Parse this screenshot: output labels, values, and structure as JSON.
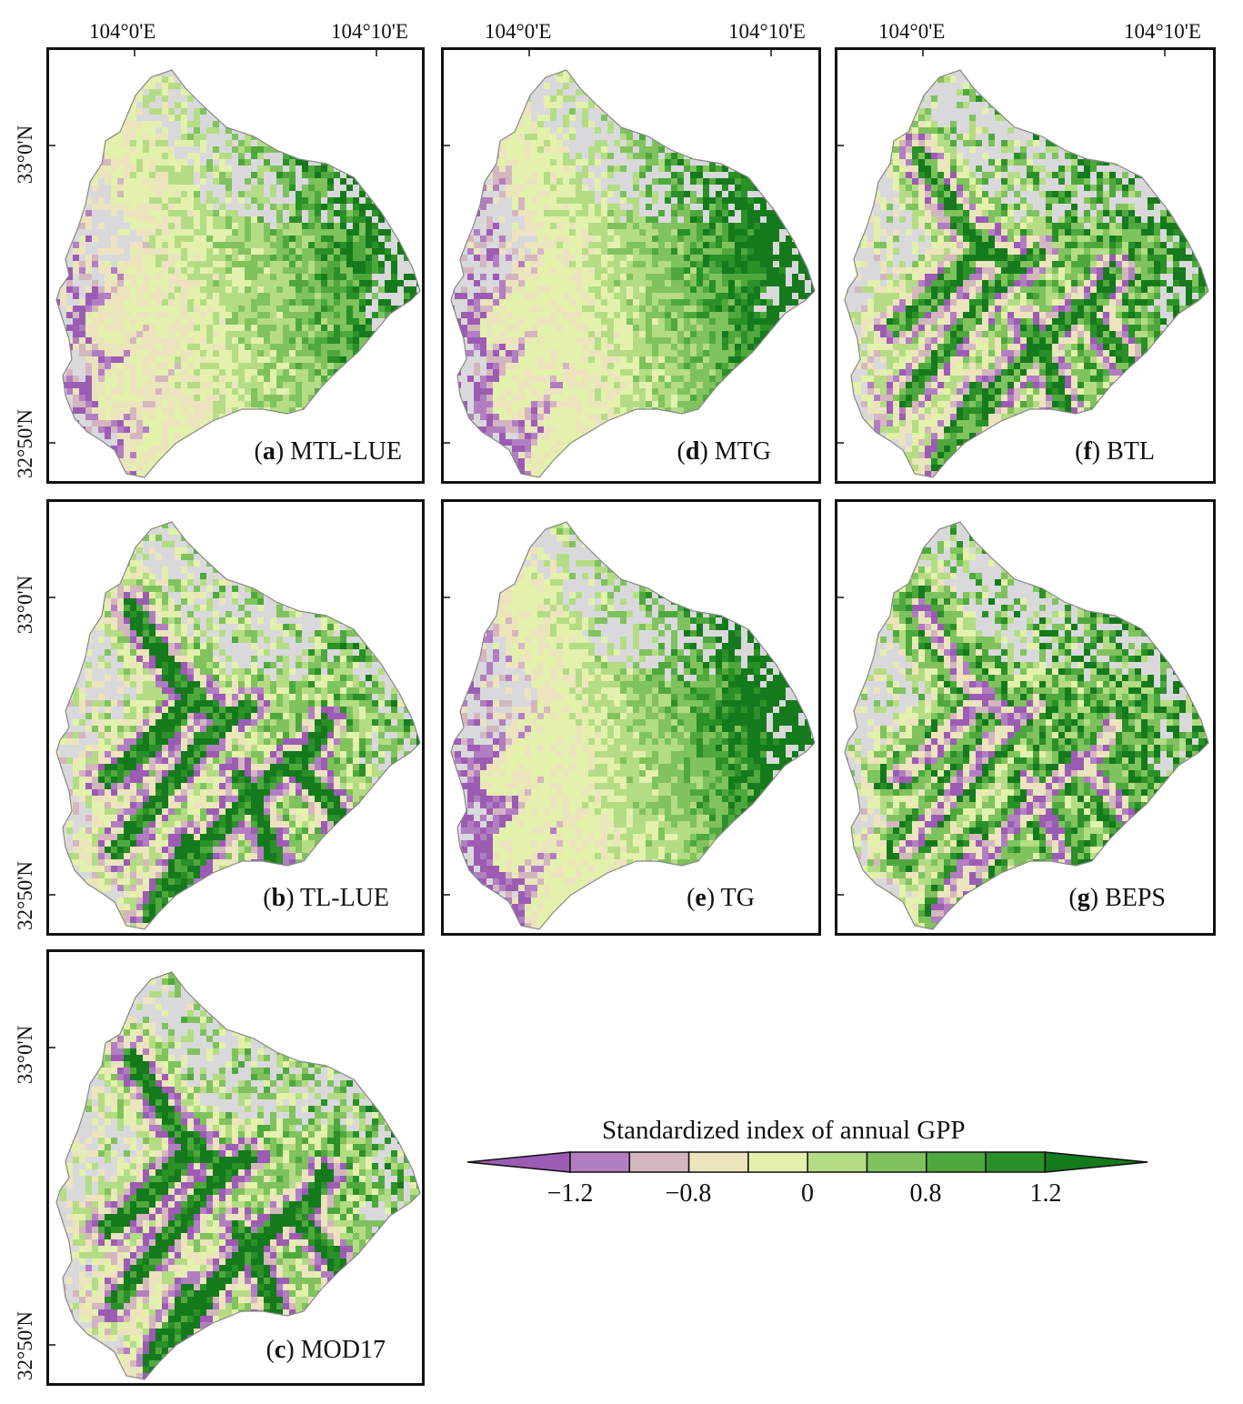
{
  "figure": {
    "lon_labels": [
      "104°0'E",
      "104°10'E"
    ],
    "lat_labels": [
      "33°0'N",
      "32°50'N"
    ]
  },
  "panels": [
    {
      "id": "a",
      "letter": "a",
      "name": "MTL-LUE",
      "style": "strong_east"
    },
    {
      "id": "b",
      "letter": "b",
      "name": "TL-LUE",
      "style": "light_ridges"
    },
    {
      "id": "c",
      "letter": "c",
      "name": "MOD17",
      "style": "light_ridges"
    },
    {
      "id": "d",
      "letter": "d",
      "name": "MTG",
      "style": "dark_east"
    },
    {
      "id": "e",
      "letter": "e",
      "name": "TG",
      "style": "dark_east"
    },
    {
      "id": "f",
      "letter": "f",
      "name": "BTL",
      "style": "ridges"
    },
    {
      "id": "g",
      "letter": "g",
      "name": "BEPS",
      "style": "mixed"
    }
  ],
  "colorbar": {
    "title": "Standardized index of annual GPP",
    "tick_labels": [
      "−1.2",
      "−0.8",
      "0",
      "0.8",
      "1.2"
    ],
    "colors": {
      "under": "#9c5cb4",
      "bins": [
        "#b27ec2",
        "#d4b6bf",
        "#ece4bd",
        "#e3f1ac",
        "#b4dc84",
        "#7fc25e",
        "#4fa83e",
        "#2a9027"
      ],
      "over": "#157a1c",
      "background": "#d9d9dc"
    }
  }
}
